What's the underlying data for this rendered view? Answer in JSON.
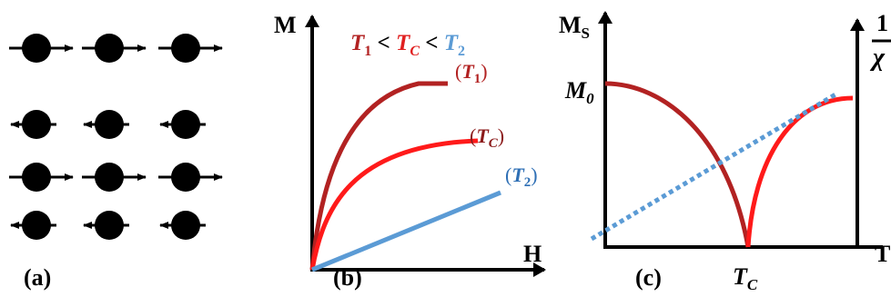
{
  "panel_a": {
    "caption": "(a)",
    "rows": [
      {
        "direction": "right"
      },
      {
        "direction": "left"
      },
      {
        "direction": "right"
      },
      {
        "direction": "left"
      }
    ],
    "columns": 3
  },
  "panel_b": {
    "caption": "(b)",
    "y_axis_label": "M",
    "x_axis_label": "H",
    "condition": {
      "t1": "T",
      "t1_sub": "1",
      "lt1": " < ",
      "tc": "T",
      "tc_sub": "C",
      "lt2": " < ",
      "t2": "T",
      "t2_sub": "2"
    },
    "curve_labels": [
      {
        "open": "(",
        "name": "T",
        "sub": "1",
        "close": ")",
        "color": "#b22222"
      },
      {
        "open": "(",
        "name": "T",
        "sub": "C",
        "close": ")",
        "color": "#e02020"
      },
      {
        "open": "(",
        "name": "T",
        "sub": "2",
        "close": ")",
        "color": "#5b9bd5"
      }
    ]
  },
  "panel_c": {
    "caption": "(c)",
    "y_axis_label": "M",
    "y_axis_sub": "S",
    "y0_label": "M",
    "y0_sub": "0",
    "tc_label": "T",
    "tc_sub": "C",
    "x_axis_label": "T",
    "right_axis_num": "1",
    "right_axis_den": "χ"
  },
  "colors": {
    "dark_red": "#b22222",
    "red": "#ff1a1a",
    "blue": "#5b9bd5",
    "black": "#000000"
  }
}
